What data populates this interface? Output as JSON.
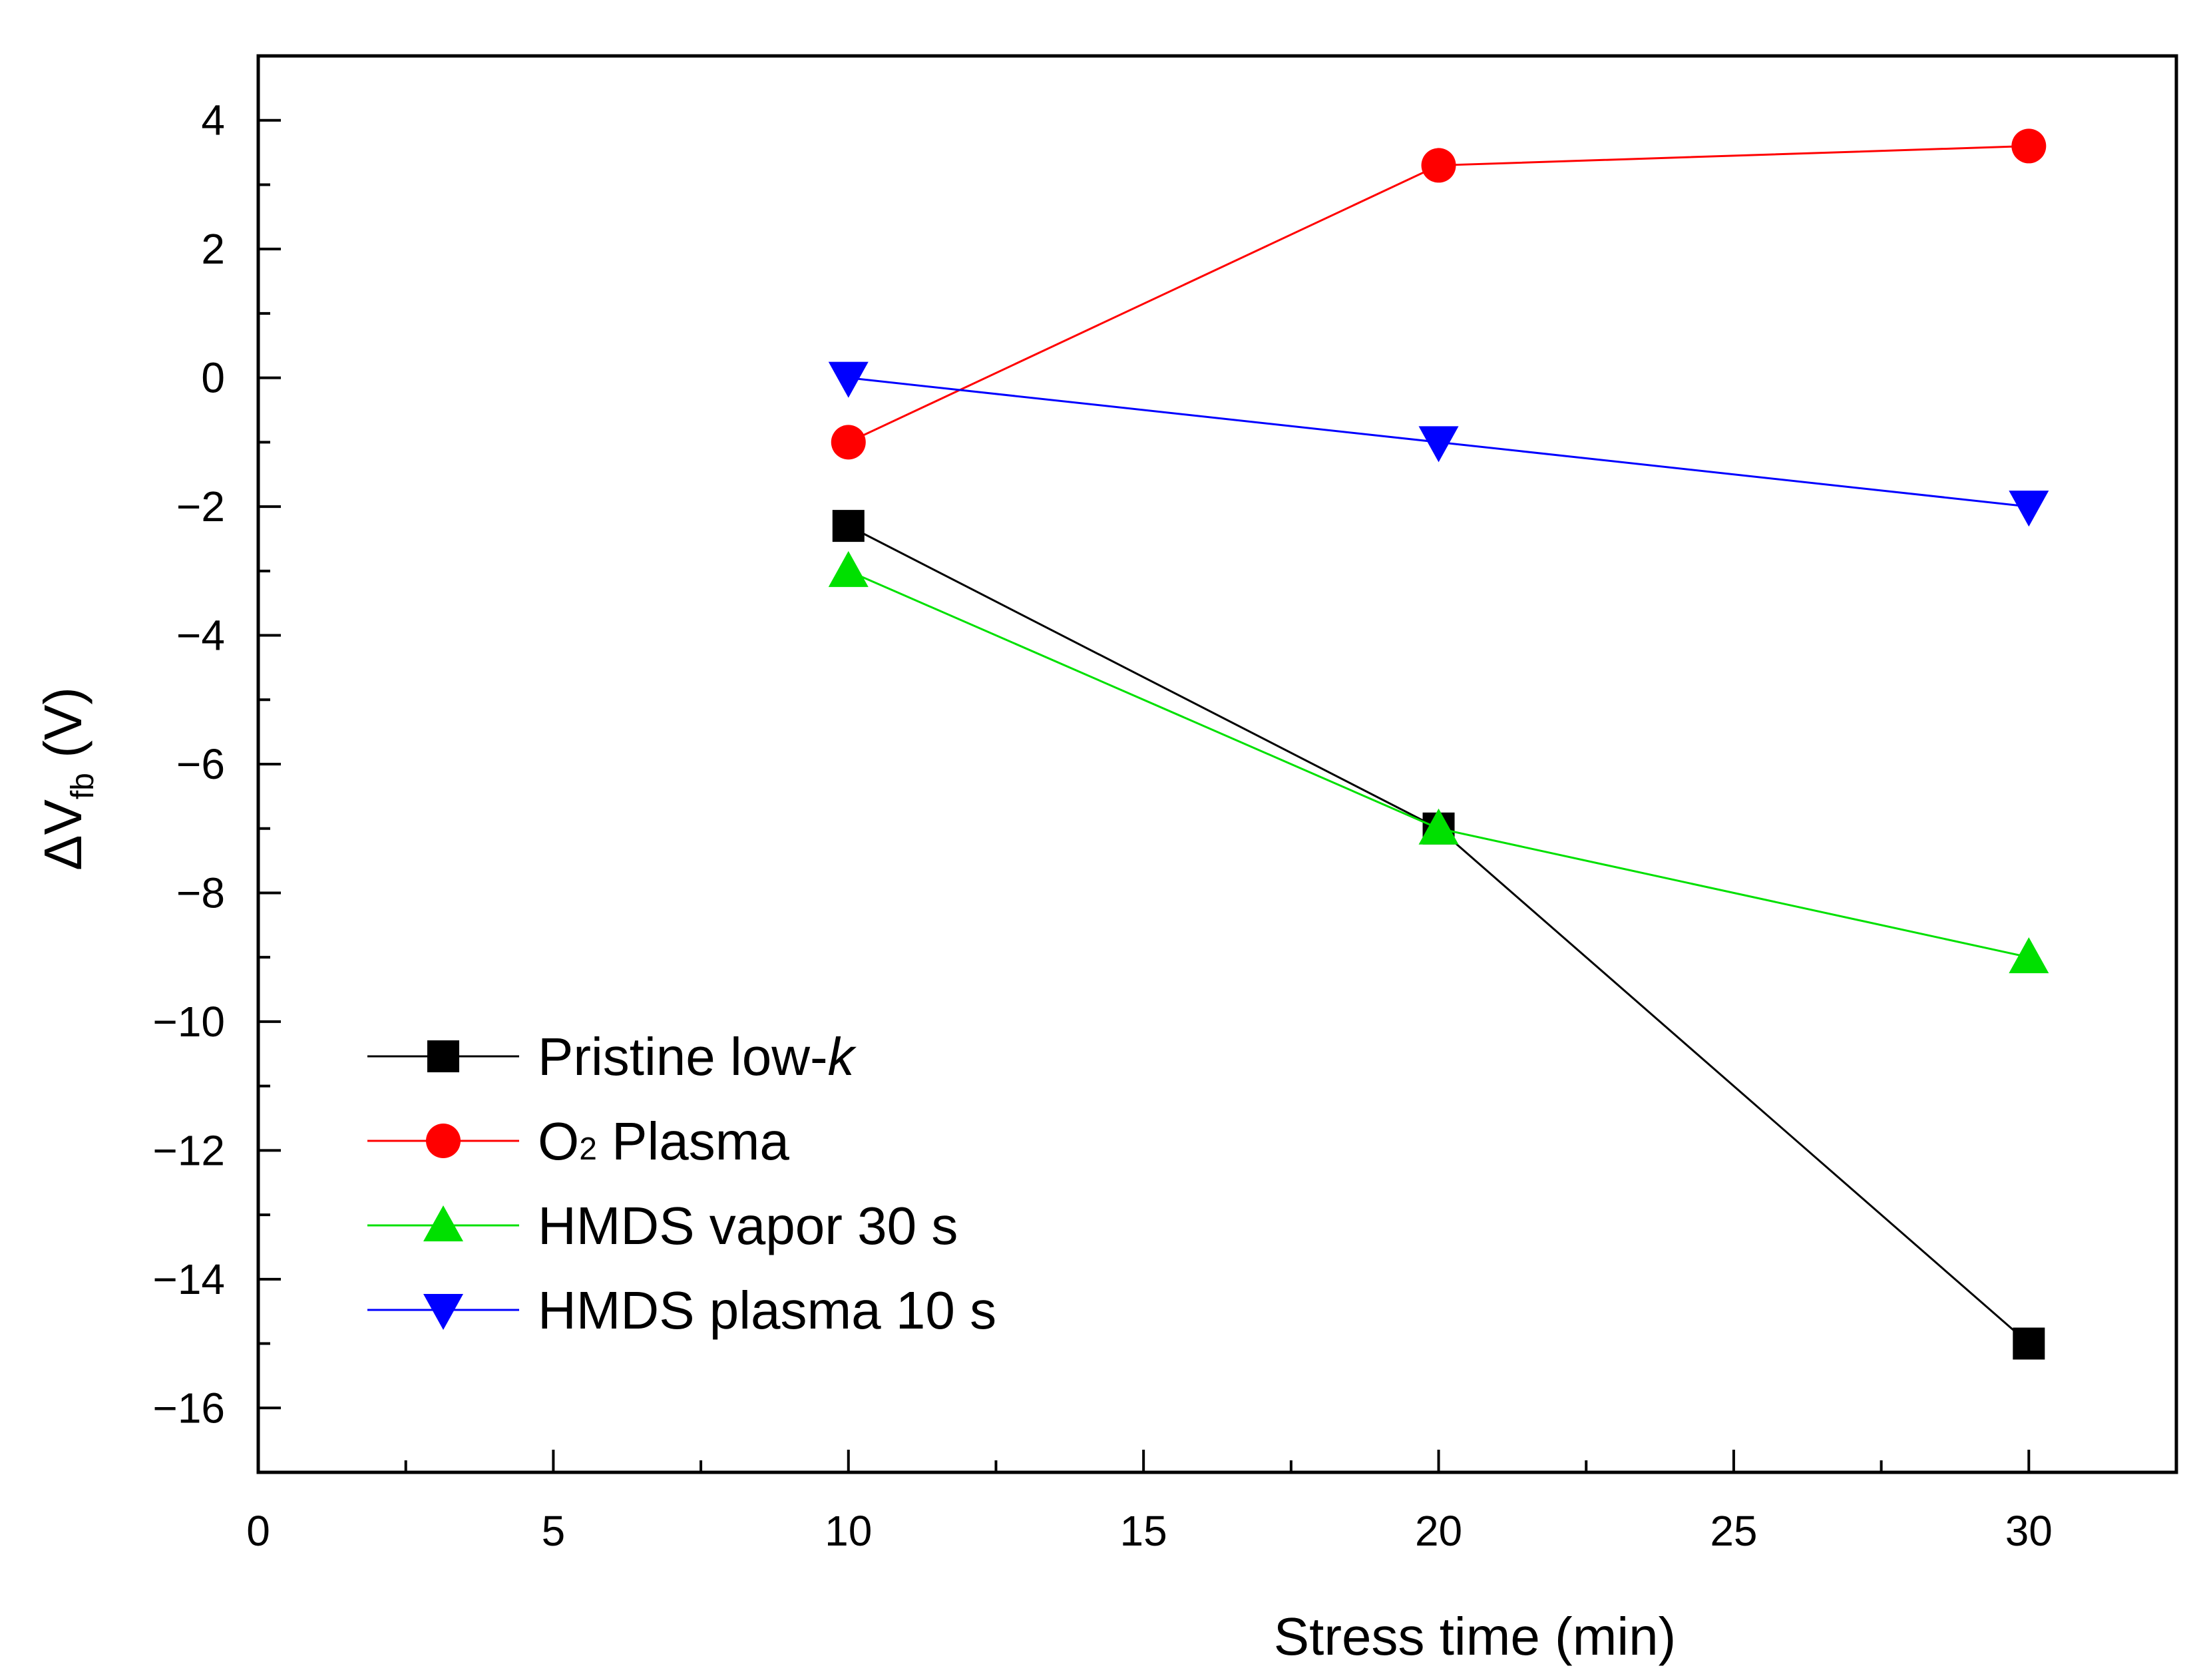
{
  "chart_data": {
    "type": "line",
    "title": "",
    "xlabel": "Stress time (min)",
    "ylabel": {
      "prefix": "ΔV",
      "subscript": "fb",
      "suffix": " (V)"
    },
    "xlim": [
      0,
      32.5
    ],
    "ylim": [
      -17,
      5
    ],
    "xticks": [
      0,
      5,
      10,
      15,
      20,
      25,
      30
    ],
    "xtick_labels": [
      "0",
      "5",
      "10",
      "15",
      "20",
      "25",
      "30"
    ],
    "yticks": [
      -16,
      -14,
      -12,
      -10,
      -8,
      -6,
      -4,
      -2,
      0,
      2,
      4
    ],
    "ytick_labels": [
      "−16",
      "−14",
      "−12",
      "−10",
      "−8",
      "−6",
      "−4",
      "−2",
      "0",
      "2",
      "4"
    ],
    "grid": false,
    "legend_position": "bottom-left",
    "x": [
      10,
      20,
      30
    ],
    "series": [
      {
        "name": "Pristine low-k",
        "label_main": "Pristine low-",
        "label_italic": "k",
        "color": "#000000",
        "marker": "square",
        "values": [
          -2.3,
          -7.0,
          -15.0
        ]
      },
      {
        "name": "O2 Plasma",
        "label_main": "O",
        "label_sub": "2",
        "label_rest": " Plasma",
        "color": "#ff0000",
        "marker": "circle",
        "values": [
          -1.0,
          3.3,
          3.6
        ]
      },
      {
        "name": "HMDS vapor 30 s",
        "label_main": "HMDS vapor 30 s",
        "color": "#00e000",
        "marker": "triangle-up",
        "values": [
          -3.0,
          -7.0,
          -9.0
        ]
      },
      {
        "name": "HMDS plasma 10 s",
        "label_main": "HMDS plasma 10 s",
        "color": "#0000ff",
        "marker": "triangle-down",
        "values": [
          0.0,
          -1.0,
          -2.0
        ]
      }
    ]
  }
}
